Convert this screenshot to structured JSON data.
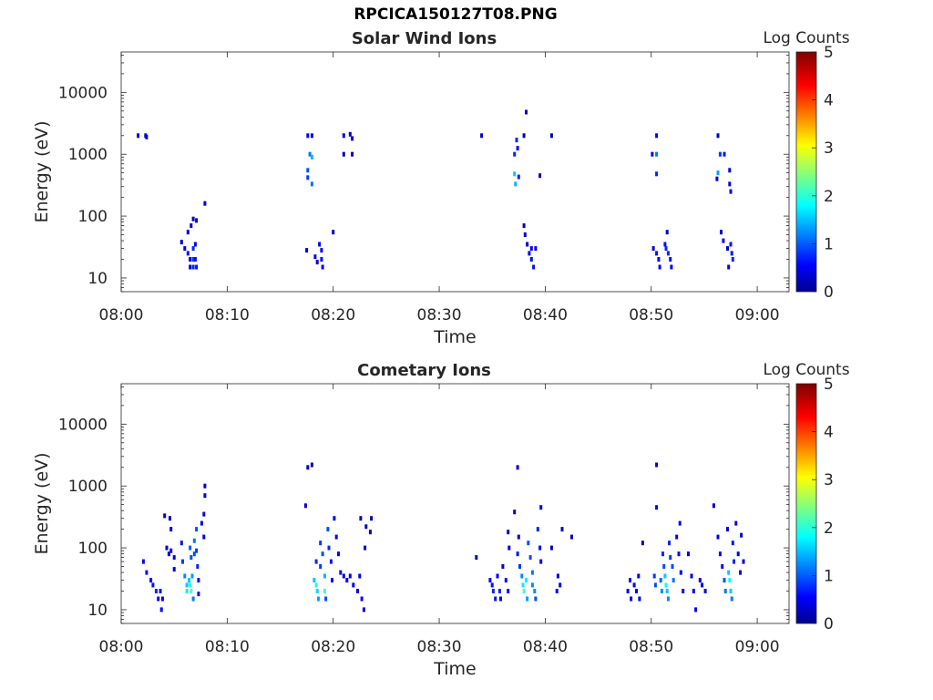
{
  "main_title": "RPCICA150127T08.PNG",
  "chart_data": [
    {
      "type": "heatmap",
      "title": "Solar Wind Ions",
      "xlabel": "Time",
      "ylabel": "Energy (eV)",
      "yscale": "log",
      "ylim": [
        6,
        45000
      ],
      "xlim_minutes": [
        0,
        63
      ],
      "x_ticks": [
        {
          "m": 0,
          "label": "08:00"
        },
        {
          "m": 10,
          "label": "08:10"
        },
        {
          "m": 20,
          "label": "08:20"
        },
        {
          "m": 30,
          "label": "08:30"
        },
        {
          "m": 40,
          "label": "08:40"
        },
        {
          "m": 50,
          "label": "08:50"
        },
        {
          "m": 60,
          "label": "09:00"
        }
      ],
      "y_ticks": [
        {
          "v": 10,
          "label": "10"
        },
        {
          "v": 100,
          "label": "100"
        },
        {
          "v": 1000,
          "label": "1000"
        },
        {
          "v": 10000,
          "label": "10000"
        }
      ],
      "colorbar": {
        "label": "Log Counts",
        "min": 0,
        "max": 5,
        "ticks": [
          "0",
          "1",
          "2",
          "3",
          "4",
          "5"
        ]
      },
      "grid": false,
      "cells": [
        [
          1.6,
          2000,
          0.4
        ],
        [
          2.3,
          2000,
          0.5
        ],
        [
          2.4,
          1900,
          0.3
        ],
        [
          5.7,
          38,
          0.4
        ],
        [
          6.0,
          30,
          0.5
        ],
        [
          6.3,
          25,
          0.7
        ],
        [
          6.5,
          20,
          0.6
        ],
        [
          6.5,
          15,
          0.5
        ],
        [
          6.8,
          30,
          0.8
        ],
        [
          6.8,
          20,
          0.9
        ],
        [
          6.8,
          15,
          0.8
        ],
        [
          7.0,
          35,
          0.6
        ],
        [
          7.0,
          20,
          0.7
        ],
        [
          7.1,
          15,
          0.7
        ],
        [
          6.3,
          55,
          0.3
        ],
        [
          6.6,
          70,
          0.3
        ],
        [
          6.8,
          90,
          0.3
        ],
        [
          7.1,
          85,
          0.3
        ],
        [
          7.9,
          160,
          0.3
        ],
        [
          17.6,
          2000,
          0.6
        ],
        [
          18.0,
          2000,
          0.5
        ],
        [
          17.8,
          1000,
          1.2
        ],
        [
          18.0,
          900,
          1.5
        ],
        [
          17.6,
          550,
          1.0
        ],
        [
          17.6,
          420,
          0.9
        ],
        [
          18.0,
          330,
          1.2
        ],
        [
          17.5,
          28,
          0.4
        ],
        [
          18.3,
          22,
          0.6
        ],
        [
          18.7,
          35,
          0.5
        ],
        [
          18.9,
          28,
          0.6
        ],
        [
          18.9,
          20,
          0.7
        ],
        [
          19.0,
          15,
          0.6
        ],
        [
          18.5,
          18,
          0.4
        ],
        [
          20.0,
          55,
          0.3
        ],
        [
          21.0,
          2000,
          0.5
        ],
        [
          21.6,
          2100,
          0.4
        ],
        [
          21.8,
          1800,
          0.4
        ],
        [
          21.0,
          1000,
          0.3
        ],
        [
          21.8,
          1000,
          0.3
        ],
        [
          34.0,
          2000,
          0.4
        ],
        [
          37.1,
          1000,
          0.8
        ],
        [
          37.3,
          1700,
          0.8
        ],
        [
          37.4,
          1250,
          0.6
        ],
        [
          37.1,
          480,
          1.6
        ],
        [
          37.2,
          330,
          1.5
        ],
        [
          37.5,
          430,
          0.8
        ],
        [
          38.2,
          4800,
          0.3
        ],
        [
          38.0,
          2000,
          0.3
        ],
        [
          40.6,
          2000,
          0.3
        ],
        [
          39.5,
          450,
          0.3
        ],
        [
          38.1,
          50,
          0.4
        ],
        [
          38.3,
          35,
          0.5
        ],
        [
          38.5,
          25,
          0.6
        ],
        [
          38.7,
          30,
          0.6
        ],
        [
          38.7,
          20,
          0.7
        ],
        [
          38.9,
          15,
          0.7
        ],
        [
          39.1,
          30,
          0.6
        ],
        [
          38.0,
          70,
          0.3
        ],
        [
          50.5,
          2000,
          0.5
        ],
        [
          50.1,
          1000,
          0.5
        ],
        [
          50.5,
          1000,
          1.2
        ],
        [
          50.5,
          480,
          0.8
        ],
        [
          50.2,
          30,
          0.4
        ],
        [
          50.5,
          25,
          0.7
        ],
        [
          50.7,
          20,
          0.6
        ],
        [
          50.8,
          15,
          0.6
        ],
        [
          51.3,
          35,
          0.7
        ],
        [
          51.4,
          30,
          0.8
        ],
        [
          51.6,
          25,
          0.8
        ],
        [
          51.8,
          20,
          0.7
        ],
        [
          51.9,
          15,
          0.6
        ],
        [
          51.5,
          55,
          0.3
        ],
        [
          56.3,
          2000,
          0.3
        ],
        [
          56.5,
          1000,
          0.9
        ],
        [
          56.9,
          1000,
          0.7
        ],
        [
          56.3,
          500,
          1.4
        ],
        [
          57.4,
          550,
          0.5
        ],
        [
          56.2,
          400,
          0.4
        ],
        [
          57.4,
          330,
          0.5
        ],
        [
          57.5,
          250,
          0.5
        ],
        [
          56.6,
          55,
          0.4
        ],
        [
          56.8,
          40,
          0.5
        ],
        [
          57.2,
          30,
          0.5
        ],
        [
          57.5,
          35,
          0.7
        ],
        [
          57.6,
          25,
          0.7
        ],
        [
          57.7,
          20,
          0.8
        ],
        [
          57.3,
          15,
          0.5
        ]
      ]
    },
    {
      "type": "heatmap",
      "title": "Cometary Ions",
      "xlabel": "Time",
      "ylabel": "Energy (eV)",
      "yscale": "log",
      "ylim": [
        6,
        45000
      ],
      "xlim_minutes": [
        0,
        63
      ],
      "x_ticks": [
        {
          "m": 0,
          "label": "08:00"
        },
        {
          "m": 10,
          "label": "08:10"
        },
        {
          "m": 20,
          "label": "08:20"
        },
        {
          "m": 30,
          "label": "08:30"
        },
        {
          "m": 40,
          "label": "08:40"
        },
        {
          "m": 50,
          "label": "08:50"
        },
        {
          "m": 60,
          "label": "09:00"
        }
      ],
      "y_ticks": [
        {
          "v": 10,
          "label": "10"
        },
        {
          "v": 100,
          "label": "100"
        },
        {
          "v": 1000,
          "label": "1000"
        },
        {
          "v": 10000,
          "label": "10000"
        }
      ],
      "colorbar": {
        "label": "Log Counts",
        "min": 0,
        "max": 5,
        "ticks": [
          "0",
          "1",
          "2",
          "3",
          "4",
          "5"
        ]
      },
      "grid": false,
      "cells": [
        [
          2.1,
          60,
          0.5
        ],
        [
          2.4,
          40,
          0.7
        ],
        [
          2.8,
          30,
          0.6
        ],
        [
          3.0,
          25,
          0.7
        ],
        [
          3.3,
          20,
          0.8
        ],
        [
          3.5,
          15,
          0.6
        ],
        [
          3.7,
          20,
          0.7
        ],
        [
          3.9,
          15,
          0.5
        ],
        [
          3.8,
          10,
          0.6
        ],
        [
          4.3,
          100,
          0.4
        ],
        [
          4.5,
          80,
          0.5
        ],
        [
          4.7,
          90,
          0.6
        ],
        [
          5.0,
          70,
          0.5
        ],
        [
          5.0,
          45,
          0.4
        ],
        [
          4.1,
          330,
          0.3
        ],
        [
          4.6,
          300,
          0.3
        ],
        [
          4.7,
          200,
          0.3
        ],
        [
          5.7,
          120,
          0.7
        ],
        [
          5.8,
          60,
          0.9
        ],
        [
          6.0,
          35,
          1.3
        ],
        [
          6.2,
          25,
          1.6
        ],
        [
          6.2,
          20,
          1.8
        ],
        [
          6.4,
          30,
          1.6
        ],
        [
          6.5,
          25,
          2.0
        ],
        [
          6.6,
          20,
          2.3
        ],
        [
          6.7,
          35,
          1.4
        ],
        [
          6.8,
          15,
          1.2
        ],
        [
          6.5,
          100,
          1.1
        ],
        [
          6.6,
          70,
          1.0
        ],
        [
          6.9,
          130,
          1.2
        ],
        [
          6.9,
          80,
          1.0
        ],
        [
          7.1,
          200,
          1.0
        ],
        [
          7.1,
          90,
          0.9
        ],
        [
          7.2,
          50,
          0.8
        ],
        [
          7.3,
          30,
          0.7
        ],
        [
          7.3,
          18,
          0.7
        ],
        [
          7.6,
          250,
          0.6
        ],
        [
          7.8,
          150,
          0.5
        ],
        [
          7.8,
          350,
          0.5
        ],
        [
          7.9,
          700,
          0.4
        ],
        [
          7.9,
          1000,
          0.3
        ],
        [
          17.4,
          480,
          0.4
        ],
        [
          17.6,
          2000,
          0.4
        ],
        [
          18.0,
          2200,
          0.3
        ],
        [
          18.2,
          30,
          1.6
        ],
        [
          18.4,
          25,
          2.0
        ],
        [
          18.5,
          20,
          1.7
        ],
        [
          18.6,
          15,
          1.4
        ],
        [
          18.4,
          60,
          0.8
        ],
        [
          18.8,
          50,
          0.9
        ],
        [
          18.8,
          120,
          0.9
        ],
        [
          19.0,
          80,
          1.0
        ],
        [
          19.2,
          35,
          1.5
        ],
        [
          19.2,
          20,
          2.2
        ],
        [
          19.3,
          15,
          1.0
        ],
        [
          19.5,
          200,
          1.0
        ],
        [
          19.6,
          100,
          0.8
        ],
        [
          19.8,
          60,
          0.7
        ],
        [
          19.9,
          30,
          0.6
        ],
        [
          20.1,
          300,
          0.6
        ],
        [
          20.3,
          150,
          0.6
        ],
        [
          20.5,
          80,
          0.5
        ],
        [
          20.7,
          40,
          0.5
        ],
        [
          21.0,
          35,
          0.5
        ],
        [
          21.3,
          30,
          0.5
        ],
        [
          21.6,
          35,
          0.4
        ],
        [
          21.9,
          25,
          0.5
        ],
        [
          22.3,
          20,
          0.5
        ],
        [
          22.5,
          35,
          0.5
        ],
        [
          22.7,
          15,
          0.6
        ],
        [
          22.9,
          10,
          0.5
        ],
        [
          22.6,
          300,
          0.3
        ],
        [
          23.1,
          220,
          0.3
        ],
        [
          23.6,
          300,
          0.3
        ],
        [
          23.5,
          180,
          0.3
        ],
        [
          23.0,
          100,
          0.3
        ],
        [
          33.5,
          70,
          0.3
        ],
        [
          34.8,
          30,
          0.6
        ],
        [
          35.0,
          25,
          0.7
        ],
        [
          35.1,
          20,
          0.8
        ],
        [
          35.3,
          15,
          0.7
        ],
        [
          35.5,
          35,
          0.6
        ],
        [
          35.7,
          20,
          0.8
        ],
        [
          35.8,
          15,
          0.6
        ],
        [
          36.3,
          30,
          0.7
        ],
        [
          36.5,
          20,
          0.6
        ],
        [
          36.0,
          50,
          0.4
        ],
        [
          36.5,
          180,
          0.3
        ],
        [
          36.6,
          100,
          0.3
        ],
        [
          37.4,
          80,
          0.7
        ],
        [
          37.6,
          50,
          0.9
        ],
        [
          37.8,
          35,
          1.3
        ],
        [
          37.9,
          25,
          1.8
        ],
        [
          38.0,
          20,
          2.2
        ],
        [
          38.2,
          30,
          1.8
        ],
        [
          38.3,
          15,
          1.4
        ],
        [
          38.4,
          120,
          1.0
        ],
        [
          38.6,
          70,
          1.0
        ],
        [
          38.8,
          40,
          1.2
        ],
        [
          38.8,
          25,
          1.3
        ],
        [
          39.0,
          20,
          1.3
        ],
        [
          39.1,
          15,
          1.0
        ],
        [
          39.3,
          200,
          0.8
        ],
        [
          39.5,
          100,
          0.6
        ],
        [
          39.6,
          450,
          0.4
        ],
        [
          39.6,
          60,
          0.5
        ],
        [
          37.4,
          2000,
          0.4
        ],
        [
          37.1,
          380,
          0.3
        ],
        [
          37.5,
          150,
          0.3
        ],
        [
          41.1,
          20,
          0.6
        ],
        [
          41.2,
          35,
          0.5
        ],
        [
          41.4,
          25,
          0.5
        ],
        [
          40.6,
          100,
          0.3
        ],
        [
          41.6,
          200,
          0.3
        ],
        [
          42.5,
          150,
          0.3
        ],
        [
          47.8,
          20,
          0.6
        ],
        [
          48.0,
          30,
          0.7
        ],
        [
          48.1,
          15,
          0.6
        ],
        [
          48.4,
          25,
          0.6
        ],
        [
          48.6,
          20,
          0.6
        ],
        [
          48.8,
          35,
          0.5
        ],
        [
          48.9,
          15,
          0.5
        ],
        [
          49.2,
          120,
          0.3
        ],
        [
          50.3,
          35,
          0.9
        ],
        [
          50.4,
          25,
          1.0
        ],
        [
          50.5,
          2200,
          0.4
        ],
        [
          50.5,
          450,
          0.4
        ],
        [
          50.9,
          30,
          1.1
        ],
        [
          51.0,
          20,
          1.3
        ],
        [
          51.1,
          80,
          0.8
        ],
        [
          51.2,
          50,
          1.0
        ],
        [
          51.3,
          35,
          1.6
        ],
        [
          51.4,
          25,
          1.9
        ],
        [
          51.5,
          20,
          1.6
        ],
        [
          51.6,
          15,
          1.3
        ],
        [
          51.7,
          120,
          0.8
        ],
        [
          51.8,
          70,
          0.9
        ],
        [
          52.0,
          50,
          1.0
        ],
        [
          52.1,
          30,
          1.2
        ],
        [
          52.4,
          150,
          0.6
        ],
        [
          52.6,
          80,
          0.6
        ],
        [
          52.7,
          250,
          0.5
        ],
        [
          52.8,
          40,
          0.6
        ],
        [
          53.0,
          20,
          0.6
        ],
        [
          53.5,
          80,
          0.4
        ],
        [
          53.8,
          35,
          0.5
        ],
        [
          54.0,
          20,
          0.6
        ],
        [
          54.2,
          10,
          0.5
        ],
        [
          54.6,
          30,
          0.5
        ],
        [
          54.8,
          25,
          0.5
        ],
        [
          55.1,
          20,
          0.5
        ],
        [
          55.9,
          480,
          0.3
        ],
        [
          56.3,
          150,
          0.5
        ],
        [
          56.5,
          80,
          0.6
        ],
        [
          56.7,
          50,
          0.7
        ],
        [
          56.9,
          30,
          1.0
        ],
        [
          57.0,
          20,
          1.2
        ],
        [
          57.3,
          40,
          1.6
        ],
        [
          57.4,
          30,
          1.9
        ],
        [
          57.5,
          20,
          1.6
        ],
        [
          57.6,
          15,
          1.2
        ],
        [
          57.7,
          120,
          0.7
        ],
        [
          57.8,
          60,
          0.8
        ],
        [
          58.0,
          250,
          0.5
        ],
        [
          58.2,
          80,
          0.5
        ],
        [
          58.4,
          40,
          0.6
        ],
        [
          58.5,
          160,
          0.4
        ],
        [
          58.7,
          60,
          0.4
        ],
        [
          57.2,
          200,
          0.4
        ]
      ]
    }
  ]
}
